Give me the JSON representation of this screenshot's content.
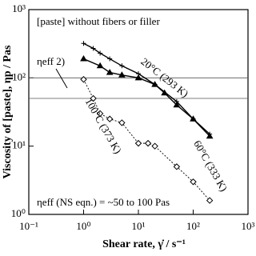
{
  "chart_data": {
    "type": "line",
    "xlabel": "Shear rate, γ̇ / s⁻¹",
    "ylabel": "Viscosity of [paste], ηp / Pas",
    "log_x": true,
    "log_y": true,
    "xlim": [
      0.1,
      1000
    ],
    "ylim": [
      1,
      1000
    ],
    "xticks": [
      {
        "value": 0.1,
        "label": "10⁻¹"
      },
      {
        "value": 1,
        "label": "10⁰"
      },
      {
        "value": 10,
        "label": "10¹"
      },
      {
        "value": 100,
        "label": "10²"
      },
      {
        "value": 1000,
        "label": "10³"
      }
    ],
    "yticks": [
      {
        "value": 1,
        "label": "10⁰"
      },
      {
        "value": 10,
        "label": "10¹"
      },
      {
        "value": 100,
        "label": "10²"
      },
      {
        "value": 1000,
        "label": "10³"
      }
    ],
    "hlines": [
      100,
      50
    ],
    "annotations": [
      "[paste] without fibers or filler",
      "ηeff 2)",
      "ηeff (NS eqn.) = ~50 to 100 Pas"
    ],
    "series": [
      {
        "name": "20°C (293 K)",
        "color": "#000000",
        "marker": "plus",
        "dash": false,
        "x": [
          1,
          1.5,
          2,
          3,
          5,
          10,
          20,
          50,
          100,
          200
        ],
        "values": [
          320,
          270,
          230,
          190,
          150,
          115,
          80,
          45,
          25,
          15
        ]
      },
      {
        "name": "60°C (333 K)",
        "color": "#000000",
        "marker": "triangle",
        "dash": false,
        "x": [
          1,
          2,
          3,
          5,
          10,
          20,
          30,
          50,
          100,
          200
        ],
        "values": [
          190,
          150,
          120,
          110,
          100,
          80,
          60,
          40,
          25,
          14
        ]
      },
      {
        "name": "100°C (373 K)",
        "color": "#000000",
        "marker": "diamond",
        "dash": true,
        "x": [
          1,
          1.5,
          2,
          3,
          5,
          10,
          15,
          20,
          50,
          100,
          200
        ],
        "values": [
          95,
          50,
          30,
          25,
          22,
          11,
          11,
          10,
          5,
          3,
          1.6
        ]
      }
    ]
  }
}
